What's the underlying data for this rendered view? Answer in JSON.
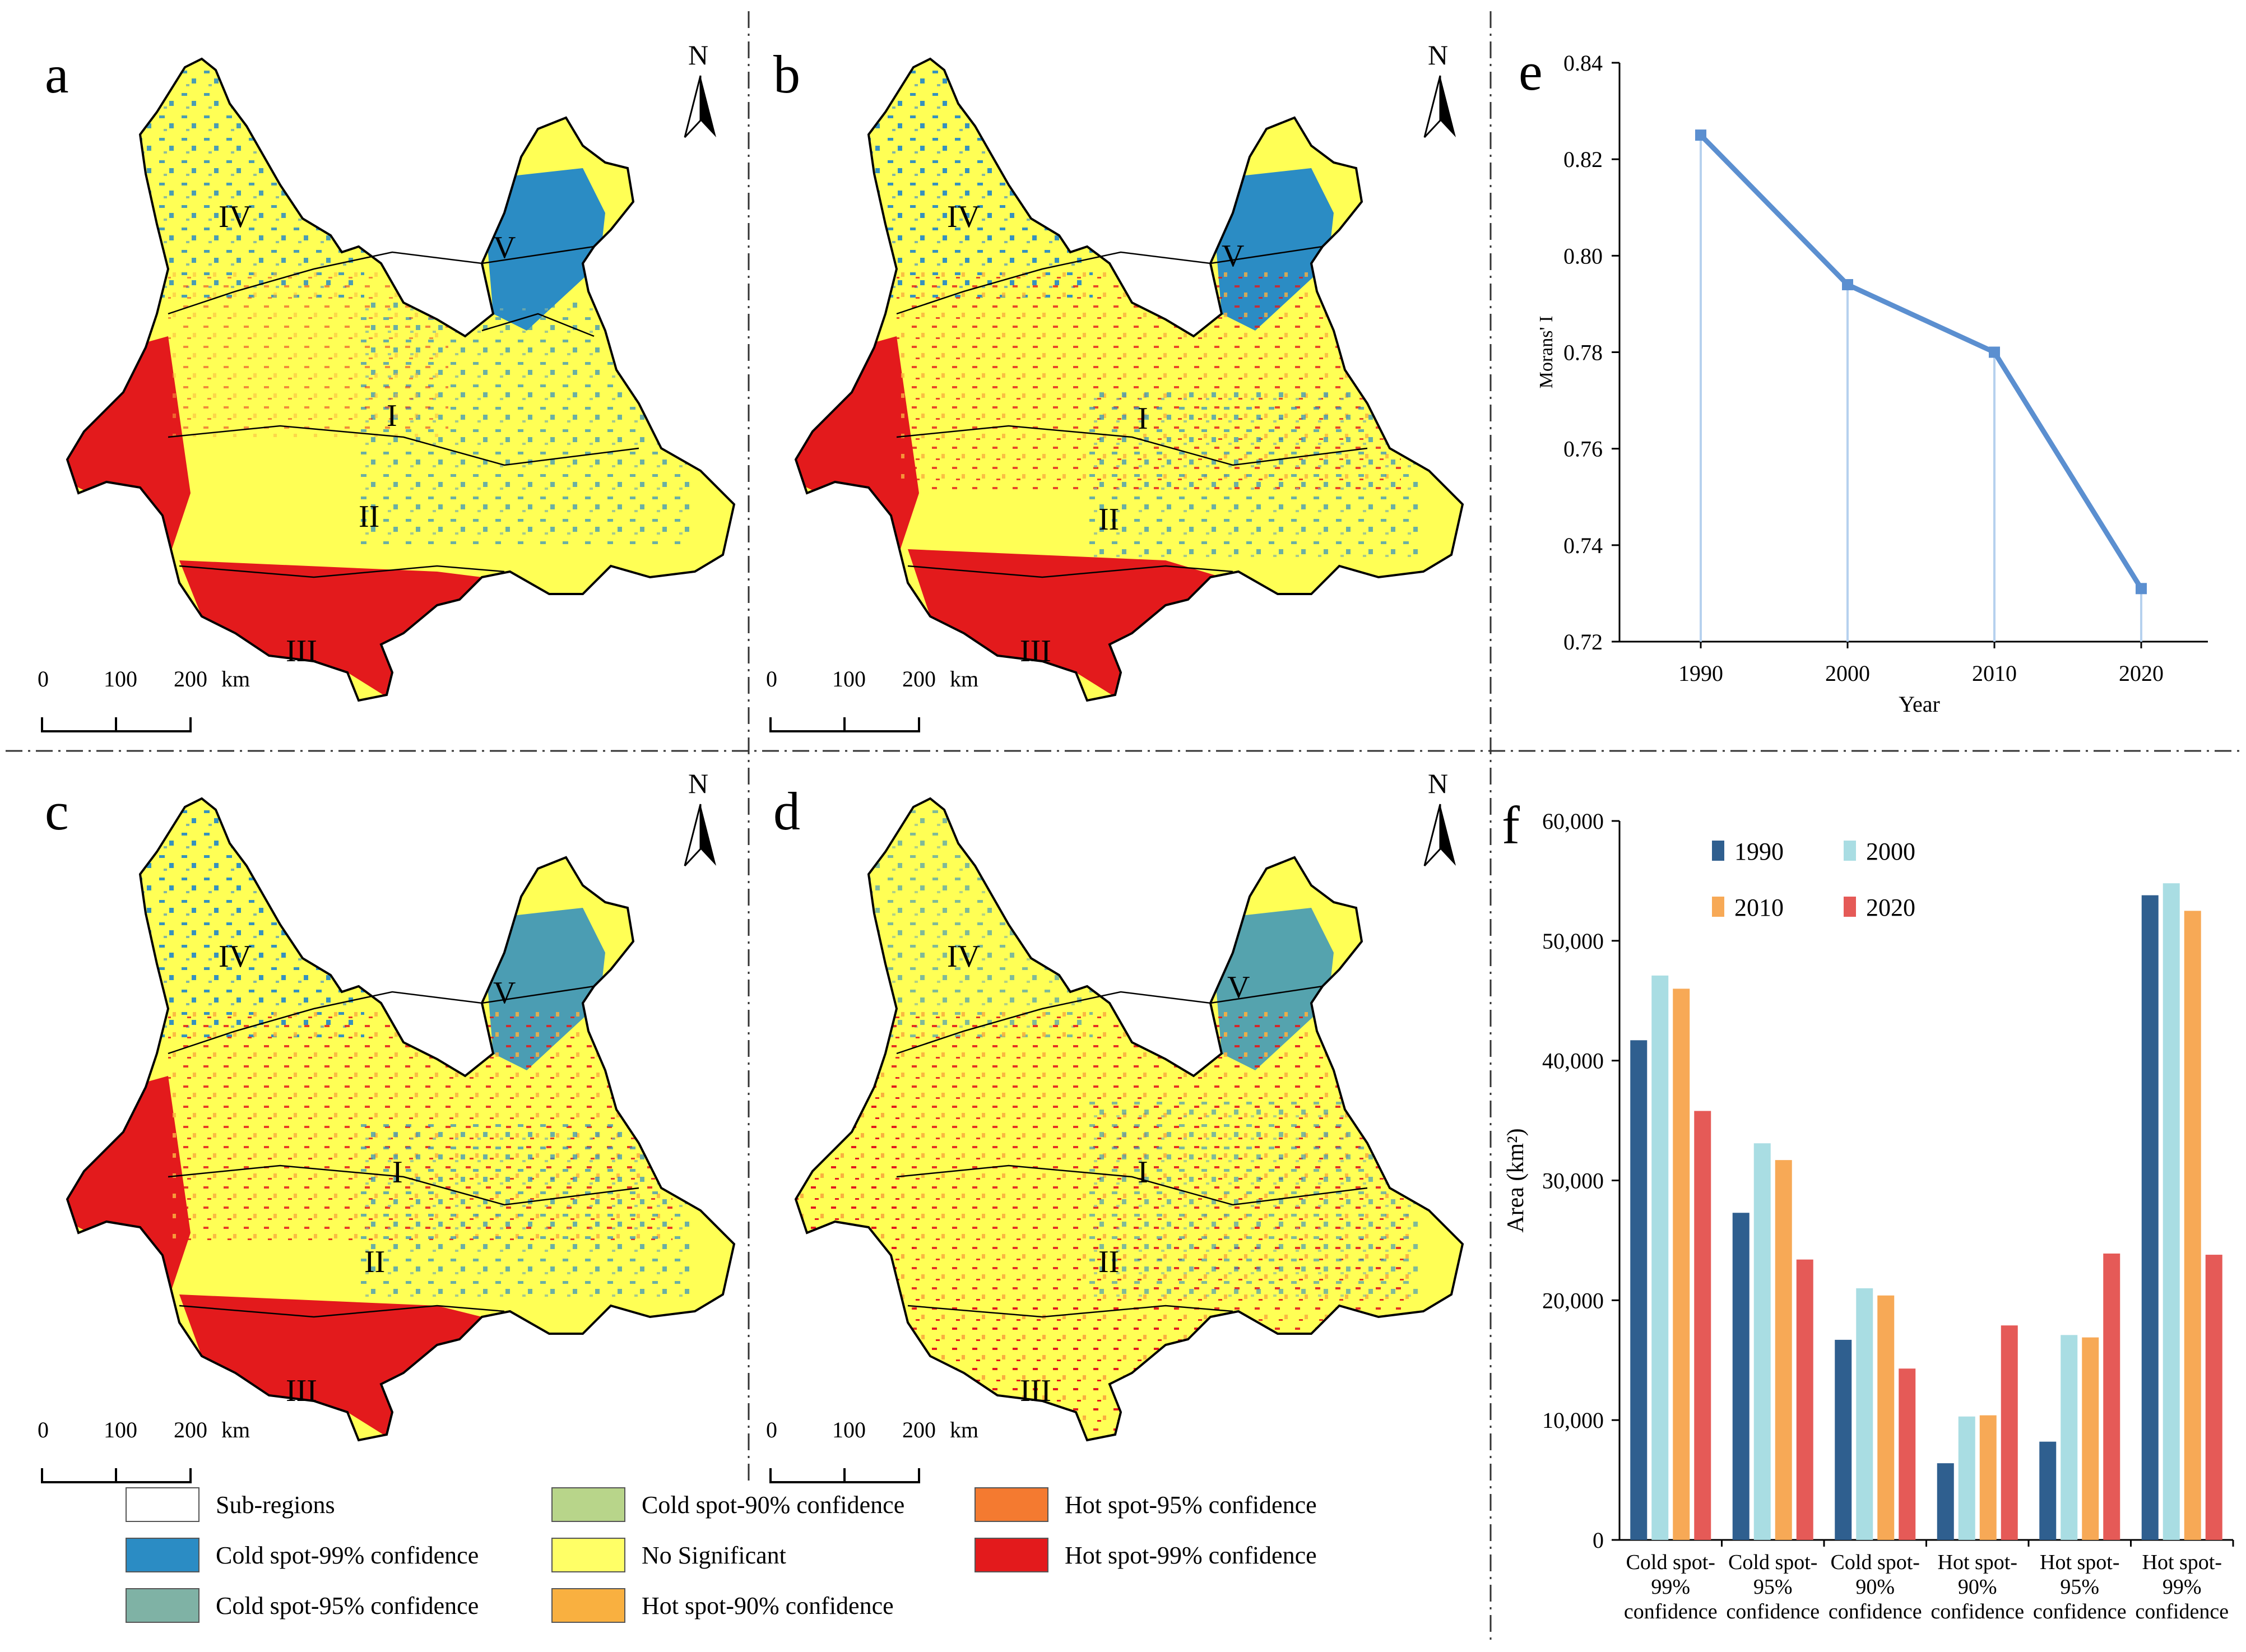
{
  "panels": {
    "a": {
      "letter": "a",
      "regions": [
        "IV",
        "V",
        "I",
        "II",
        "III"
      ]
    },
    "b": {
      "letter": "b",
      "regions": [
        "IV",
        "V",
        "I",
        "II",
        "III"
      ]
    },
    "c": {
      "letter": "c",
      "regions": [
        "IV",
        "V",
        "I",
        "II",
        "III"
      ]
    },
    "d": {
      "letter": "d",
      "regions": [
        "IV",
        "V",
        "I",
        "II",
        "III"
      ]
    },
    "e": {
      "letter": "e"
    },
    "f": {
      "letter": "f"
    }
  },
  "north_label": "N",
  "scale_bar": {
    "ticks": [
      "0",
      "100",
      "200"
    ],
    "unit": "km"
  },
  "legend": {
    "items": [
      {
        "label": "Sub-regions",
        "color": "#ffffff"
      },
      {
        "label": "Cold spot-99% confidence",
        "color": "#2b8cc4"
      },
      {
        "label": "Cold spot-95% confidence",
        "color": "#7fb2a5"
      },
      {
        "label": "Cold spot-90% confidence",
        "color": "#b8d58a"
      },
      {
        "label": "No Significant",
        "color": "#ffff66"
      },
      {
        "label": "Hot spot-90% confidence",
        "color": "#f9b040"
      },
      {
        "label": "Hot spot-95% confidence",
        "color": "#f47a30"
      },
      {
        "label": "Hot spot-99% confidence",
        "color": "#e31a1c"
      }
    ]
  },
  "map_colors": {
    "no_sig": "#ffff55",
    "cold": "#2b8cc4",
    "cold_light": "#7fb2a5",
    "hot": "#e31a1c",
    "hot_orange": "#f9b040"
  },
  "chart_data": [
    {
      "panel": "e",
      "type": "line",
      "title": "",
      "x": [
        "1990",
        "2000",
        "2010",
        "2020"
      ],
      "series": [
        {
          "name": "Morans' I",
          "values": [
            0.825,
            0.794,
            0.78,
            0.731
          ],
          "color": "#5b8fd0"
        }
      ],
      "xlabel": "Year",
      "ylabel": "Morans' I",
      "ylim": [
        0.72,
        0.84
      ],
      "yticks": [
        "0.72",
        "0.74",
        "0.76",
        "0.78",
        "0.80",
        "0.82",
        "0.84"
      ],
      "droplines": true
    },
    {
      "panel": "f",
      "type": "bar",
      "title": "",
      "categories": [
        [
          "Cold spot-",
          "99%",
          "confidence"
        ],
        [
          "Cold spot-",
          "95%",
          "confidence"
        ],
        [
          "Cold spot-",
          "90%",
          "confidence"
        ],
        [
          "Hot spot-",
          "90%",
          "confidence"
        ],
        [
          "Hot spot-",
          "95%",
          "confidence"
        ],
        [
          "Hot spot-",
          "99%",
          "confidence"
        ]
      ],
      "series": [
        {
          "name": "1990",
          "color": "#2f5f8f",
          "values": [
            41700,
            27300,
            16700,
            6400,
            8200,
            53800
          ]
        },
        {
          "name": "2000",
          "color": "#a9dde3",
          "values": [
            47100,
            33100,
            21000,
            10300,
            17100,
            54800
          ]
        },
        {
          "name": "2010",
          "color": "#f7a956",
          "values": [
            46000,
            31700,
            20400,
            10400,
            16900,
            52500
          ]
        },
        {
          "name": "2020",
          "color": "#e55a57",
          "values": [
            35800,
            23400,
            14300,
            17900,
            23900,
            23800
          ]
        }
      ],
      "xlabel": "",
      "ylabel": "Area (km²)",
      "ylim": [
        0,
        60000
      ],
      "yticks": [
        "0",
        "10,000",
        "20,000",
        "30,000",
        "40,000",
        "50,000",
        "60,000"
      ]
    }
  ]
}
